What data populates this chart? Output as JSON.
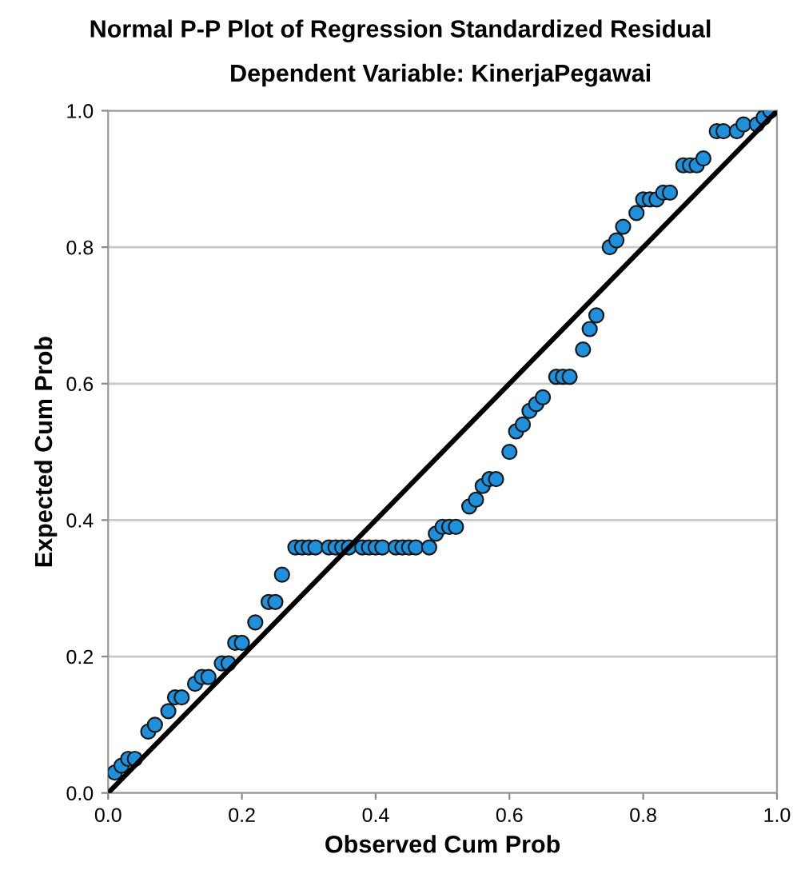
{
  "chart_data": {
    "type": "scatter",
    "title": "Normal P-P Plot of Regression Standardized Residual",
    "subtitle": "Dependent Variable: KinerjaPegawai",
    "xlabel": "Observed Cum Prob",
    "ylabel": "Expected Cum Prob",
    "xlim": [
      0,
      1
    ],
    "ylim": [
      0,
      1
    ],
    "xticks": [
      {
        "value": 0,
        "label": "0.0"
      },
      {
        "value": 0.2,
        "label": "0.2"
      },
      {
        "value": 0.4,
        "label": "0.4"
      },
      {
        "value": 0.6,
        "label": "0.6"
      },
      {
        "value": 0.8,
        "label": "0.8"
      },
      {
        "value": 1,
        "label": "1.0"
      }
    ],
    "yticks": [
      {
        "value": 0,
        "label": "0.0"
      },
      {
        "value": 0.2,
        "label": "0.2"
      },
      {
        "value": 0.4,
        "label": "0.4"
      },
      {
        "value": 0.6,
        "label": "0.6"
      },
      {
        "value": 0.8,
        "label": "0.8"
      },
      {
        "value": 1,
        "label": "1.0"
      }
    ],
    "grid": "y",
    "series": [
      {
        "marker": "circle",
        "color": "#1e90dc",
        "x": [
          0.01,
          0.02,
          0.03,
          0.04,
          0.06,
          0.07,
          0.09,
          0.1,
          0.11,
          0.13,
          0.14,
          0.15,
          0.17,
          0.18,
          0.19,
          0.2,
          0.22,
          0.24,
          0.25,
          0.26,
          0.28,
          0.29,
          0.3,
          0.31,
          0.33,
          0.34,
          0.35,
          0.36,
          0.38,
          0.39,
          0.4,
          0.41,
          0.43,
          0.44,
          0.45,
          0.46,
          0.48,
          0.49,
          0.5,
          0.51,
          0.52,
          0.54,
          0.55,
          0.56,
          0.57,
          0.58,
          0.6,
          0.61,
          0.62,
          0.63,
          0.64,
          0.65,
          0.67,
          0.68,
          0.69,
          0.71,
          0.72,
          0.73,
          0.75,
          0.76,
          0.77,
          0.79,
          0.8,
          0.81,
          0.82,
          0.83,
          0.84,
          0.86,
          0.87,
          0.88,
          0.89,
          0.91,
          0.92,
          0.94,
          0.95,
          0.97,
          0.98,
          0.99
        ],
        "values": [
          0.03,
          0.04,
          0.05,
          0.05,
          0.09,
          0.1,
          0.12,
          0.14,
          0.14,
          0.16,
          0.17,
          0.17,
          0.19,
          0.19,
          0.22,
          0.22,
          0.25,
          0.28,
          0.28,
          0.32,
          0.36,
          0.36,
          0.36,
          0.36,
          0.36,
          0.36,
          0.36,
          0.36,
          0.36,
          0.36,
          0.36,
          0.36,
          0.36,
          0.36,
          0.36,
          0.36,
          0.36,
          0.38,
          0.39,
          0.39,
          0.39,
          0.42,
          0.43,
          0.45,
          0.46,
          0.46,
          0.5,
          0.53,
          0.54,
          0.56,
          0.57,
          0.58,
          0.61,
          0.61,
          0.61,
          0.65,
          0.68,
          0.7,
          0.8,
          0.81,
          0.83,
          0.85,
          0.87,
          0.87,
          0.87,
          0.88,
          0.88,
          0.92,
          0.92,
          0.92,
          0.93,
          0.97,
          0.97,
          0.97,
          0.98,
          0.98,
          0.99,
          1.0
        ]
      },
      {
        "type": "line",
        "marker": "none",
        "color": "#000000",
        "x": [
          0,
          1
        ],
        "values": [
          0,
          1
        ]
      }
    ]
  }
}
